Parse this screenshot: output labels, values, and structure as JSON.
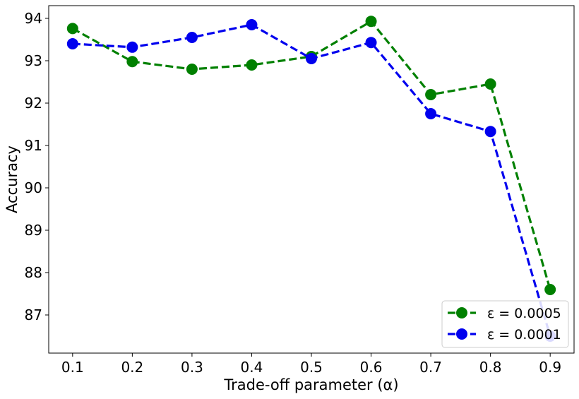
{
  "chart_data": {
    "type": "line",
    "title": "",
    "xlabel": "Trade-off parameter (α)",
    "ylabel": "Accuracy",
    "x": [
      0.1,
      0.2,
      0.3,
      0.4,
      0.5,
      0.6,
      0.7,
      0.8,
      0.9
    ],
    "xlim": [
      0.06,
      0.94
    ],
    "ylim": [
      86.1,
      94.3
    ],
    "xticks": [
      "0.1",
      "0.2",
      "0.3",
      "0.4",
      "0.5",
      "0.6",
      "0.7",
      "0.8",
      "0.9"
    ],
    "yticks": [
      "87",
      "88",
      "89",
      "90",
      "91",
      "92",
      "93",
      "94"
    ],
    "grid": false,
    "legend_position": "lower-right",
    "series": [
      {
        "name": "ε = 0.0005",
        "color": "#008000",
        "values": [
          93.76,
          92.98,
          92.8,
          92.9,
          93.1,
          93.93,
          92.2,
          92.45,
          87.6
        ]
      },
      {
        "name": "ε = 0.0001",
        "color": "#0000ee",
        "values": [
          93.4,
          93.32,
          93.55,
          93.85,
          93.05,
          93.43,
          91.75,
          91.33,
          86.5
        ]
      }
    ]
  }
}
